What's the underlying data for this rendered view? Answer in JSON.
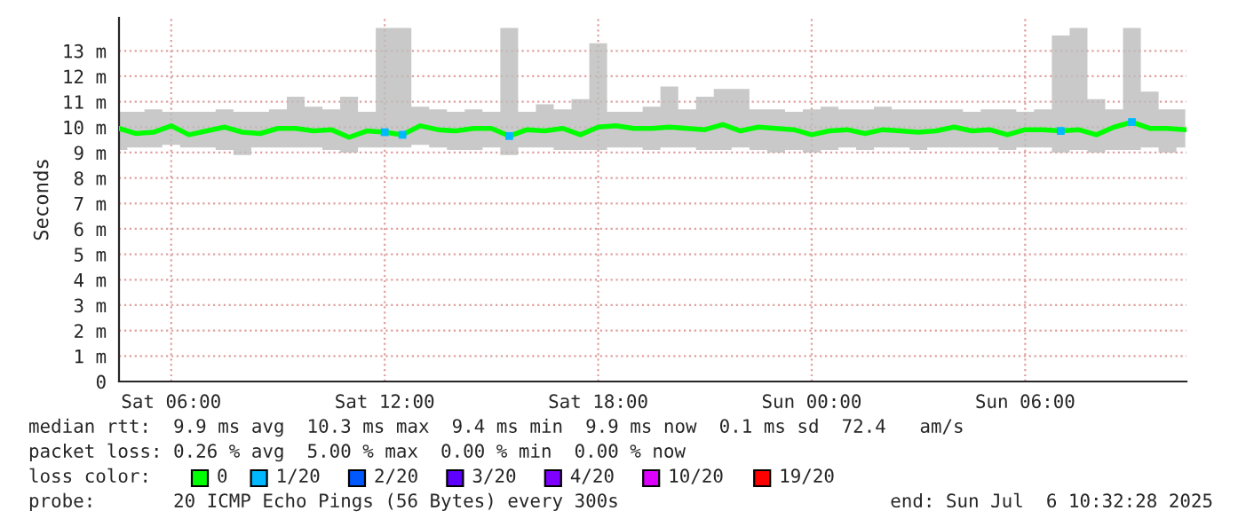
{
  "chart_data": {
    "type": "line",
    "ylabel": "Seconds",
    "x": [
      "2025-07-05T04:32",
      "2025-07-05T05:00",
      "2025-07-05T05:30",
      "2025-07-05T06:00",
      "2025-07-05T06:30",
      "2025-07-05T07:00",
      "2025-07-05T07:30",
      "2025-07-05T08:00",
      "2025-07-05T08:30",
      "2025-07-05T09:00",
      "2025-07-05T09:30",
      "2025-07-05T10:00",
      "2025-07-05T10:30",
      "2025-07-05T11:00",
      "2025-07-05T11:30",
      "2025-07-05T12:00",
      "2025-07-05T12:30",
      "2025-07-05T13:00",
      "2025-07-05T13:30",
      "2025-07-05T14:00",
      "2025-07-05T14:30",
      "2025-07-05T15:00",
      "2025-07-05T15:30",
      "2025-07-05T16:00",
      "2025-07-05T16:30",
      "2025-07-05T17:00",
      "2025-07-05T17:30",
      "2025-07-05T18:00",
      "2025-07-05T18:30",
      "2025-07-05T19:00",
      "2025-07-05T19:30",
      "2025-07-05T20:00",
      "2025-07-05T20:30",
      "2025-07-05T21:00",
      "2025-07-05T21:30",
      "2025-07-05T22:00",
      "2025-07-05T22:30",
      "2025-07-05T23:00",
      "2025-07-05T23:30",
      "2025-07-06T00:00",
      "2025-07-06T00:30",
      "2025-07-06T01:00",
      "2025-07-06T01:30",
      "2025-07-06T02:00",
      "2025-07-06T02:30",
      "2025-07-06T03:00",
      "2025-07-06T03:30",
      "2025-07-06T04:00",
      "2025-07-06T04:30",
      "2025-07-06T05:00",
      "2025-07-06T05:30",
      "2025-07-06T06:00",
      "2025-07-06T06:30",
      "2025-07-06T07:00",
      "2025-07-06T07:30",
      "2025-07-06T08:00",
      "2025-07-06T08:30",
      "2025-07-06T09:00",
      "2025-07-06T09:30",
      "2025-07-06T10:00",
      "2025-07-06T10:30"
    ],
    "series": [
      {
        "name": "0",
        "color": "#00ff00",
        "values": [
          9.95,
          9.75,
          9.8,
          10.05,
          9.7,
          9.85,
          10.0,
          9.8,
          9.75,
          9.95,
          9.95,
          9.85,
          9.9,
          9.6,
          9.85,
          9.8,
          9.7,
          10.05,
          9.9,
          9.85,
          9.95,
          9.95,
          9.65,
          9.9,
          9.85,
          9.95,
          9.7,
          10.0,
          10.05,
          9.95,
          9.95,
          10.0,
          9.95,
          9.9,
          10.1,
          9.85,
          10.0,
          9.95,
          9.9,
          9.7,
          9.85,
          9.9,
          9.75,
          9.9,
          9.85,
          9.8,
          9.85,
          10.0,
          9.85,
          9.9,
          9.7,
          9.9,
          9.9,
          9.85,
          9.9,
          9.7,
          10.0,
          10.2,
          9.95,
          9.95,
          9.9
        ],
        "lower": [
          9.1,
          9.2,
          9.2,
          9.3,
          9.2,
          9.2,
          9.1,
          8.9,
          9.2,
          9.2,
          9.2,
          9.2,
          9.1,
          9.0,
          9.2,
          9.2,
          9.2,
          9.3,
          9.2,
          9.1,
          9.1,
          9.2,
          8.9,
          9.2,
          9.2,
          9.1,
          9.1,
          9.1,
          9.2,
          9.2,
          9.1,
          9.2,
          9.2,
          9.1,
          9.1,
          9.2,
          9.1,
          9.0,
          9.1,
          9.0,
          9.1,
          9.2,
          9.1,
          9.2,
          9.2,
          9.1,
          9.2,
          9.2,
          9.2,
          9.2,
          9.1,
          9.2,
          9.2,
          9.0,
          9.1,
          9.0,
          9.1,
          9.1,
          9.2,
          9.0,
          9.2
        ],
        "upper": [
          10.6,
          10.6,
          10.7,
          10.6,
          10.6,
          10.6,
          10.7,
          10.6,
          10.6,
          10.7,
          11.2,
          10.8,
          10.7,
          11.2,
          10.6,
          13.9,
          13.9,
          10.8,
          10.7,
          10.6,
          10.7,
          10.6,
          13.9,
          10.6,
          10.9,
          10.7,
          11.1,
          13.3,
          10.6,
          10.6,
          10.8,
          11.6,
          10.7,
          11.2,
          11.5,
          11.5,
          10.7,
          10.7,
          10.6,
          10.7,
          10.8,
          10.7,
          10.7,
          10.8,
          10.7,
          10.7,
          10.7,
          10.7,
          10.6,
          10.7,
          10.7,
          10.6,
          10.7,
          13.6,
          13.9,
          11.1,
          10.7,
          13.9,
          11.4,
          10.7,
          10.7
        ]
      },
      {
        "name": "1/20",
        "color": "#00b8ff",
        "type": "scatter",
        "marker": "square",
        "values": [
          null,
          null,
          null,
          null,
          null,
          null,
          null,
          null,
          null,
          null,
          null,
          null,
          null,
          null,
          null,
          9.8,
          9.7,
          null,
          null,
          null,
          null,
          null,
          9.65,
          null,
          null,
          null,
          null,
          null,
          null,
          null,
          null,
          null,
          null,
          null,
          null,
          null,
          null,
          null,
          null,
          null,
          null,
          null,
          null,
          null,
          null,
          null,
          null,
          null,
          null,
          null,
          null,
          null,
          null,
          9.85,
          null,
          null,
          null,
          10.2,
          null,
          null,
          null
        ]
      },
      {
        "name": "2/20",
        "color": "#0059ff",
        "type": "scatter",
        "marker": "square",
        "values": [
          null,
          null,
          null,
          null,
          null,
          null,
          null,
          null,
          null,
          null,
          null,
          null,
          null,
          null,
          null,
          null,
          null,
          null,
          null,
          null,
          null,
          null,
          null,
          null,
          null,
          null,
          null,
          null,
          null,
          null,
          null,
          null,
          null,
          null,
          null,
          null,
          null,
          null,
          null,
          null,
          null,
          null,
          null,
          null,
          null,
          null,
          null,
          null,
          null,
          null,
          null,
          null,
          null,
          null,
          null,
          null,
          null,
          null,
          null,
          null,
          null
        ]
      },
      {
        "name": "3/20",
        "color": "#5e00ff",
        "type": "scatter",
        "marker": "square",
        "values": [
          null,
          null,
          null,
          null,
          null,
          null,
          null,
          null,
          null,
          null,
          null,
          null,
          null,
          null,
          null,
          null,
          null,
          null,
          null,
          null,
          null,
          null,
          null,
          null,
          null,
          null,
          null,
          null,
          null,
          null,
          null,
          null,
          null,
          null,
          null,
          null,
          null,
          null,
          null,
          null,
          null,
          null,
          null,
          null,
          null,
          null,
          null,
          null,
          null,
          null,
          null,
          null,
          null,
          null,
          null,
          null,
          null,
          null,
          null,
          null,
          null
        ]
      },
      {
        "name": "4/20",
        "color": "#7e00ff",
        "type": "scatter",
        "marker": "square",
        "values": [
          null,
          null,
          null,
          null,
          null,
          null,
          null,
          null,
          null,
          null,
          null,
          null,
          null,
          null,
          null,
          null,
          null,
          null,
          null,
          null,
          null,
          null,
          null,
          null,
          null,
          null,
          null,
          null,
          null,
          null,
          null,
          null,
          null,
          null,
          null,
          null,
          null,
          null,
          null,
          null,
          null,
          null,
          null,
          null,
          null,
          null,
          null,
          null,
          null,
          null,
          null,
          null,
          null,
          null,
          null,
          null,
          null,
          null,
          null,
          null,
          null
        ]
      },
      {
        "name": "10/20",
        "color": "#dd00ff",
        "type": "scatter",
        "marker": "square",
        "values": [
          null,
          null,
          null,
          null,
          null,
          null,
          null,
          null,
          null,
          null,
          null,
          null,
          null,
          null,
          null,
          null,
          null,
          null,
          null,
          null,
          null,
          null,
          null,
          null,
          null,
          null,
          null,
          null,
          null,
          null,
          null,
          null,
          null,
          null,
          null,
          null,
          null,
          null,
          null,
          null,
          null,
          null,
          null,
          null,
          null,
          null,
          null,
          null,
          null,
          null,
          null,
          null,
          null,
          null,
          null,
          null,
          null,
          null,
          null,
          null,
          null
        ]
      },
      {
        "name": "19/20",
        "color": "#ff0000",
        "type": "scatter",
        "marker": "square",
        "values": [
          null,
          null,
          null,
          null,
          null,
          null,
          null,
          null,
          null,
          null,
          null,
          null,
          null,
          null,
          null,
          null,
          null,
          null,
          null,
          null,
          null,
          null,
          null,
          null,
          null,
          null,
          null,
          null,
          null,
          null,
          null,
          null,
          null,
          null,
          null,
          null,
          null,
          null,
          null,
          null,
          null,
          null,
          null,
          null,
          null,
          null,
          null,
          null,
          null,
          null,
          null,
          null,
          null,
          null,
          null,
          null,
          null,
          null,
          null,
          null,
          null
        ]
      }
    ],
    "xlim": [
      "2025-07-05T04:32",
      "2025-07-06T10:32"
    ],
    "xticks": [
      {
        "value": "2025-07-05T06:00",
        "label": "Sat 06:00"
      },
      {
        "value": "2025-07-05T12:00",
        "label": "Sat 12:00"
      },
      {
        "value": "2025-07-05T18:00",
        "label": "Sat 18:00"
      },
      {
        "value": "2025-07-06T00:00",
        "label": "Sun 00:00"
      },
      {
        "value": "2025-07-06T06:00",
        "label": "Sun 06:00"
      }
    ],
    "ylim": [
      0,
      14.3
    ],
    "yticks": [
      0,
      {
        "value": 1,
        "label": "1 m"
      },
      {
        "value": 2,
        "label": "2 m"
      },
      {
        "value": 3,
        "label": "3 m"
      },
      {
        "value": 4,
        "label": "4 m"
      },
      {
        "value": 5,
        "label": "5 m"
      },
      {
        "value": 6,
        "label": "6 m"
      },
      {
        "value": 7,
        "label": "7 m"
      },
      {
        "value": 8,
        "label": "8 m"
      },
      {
        "value": 9,
        "label": "9 m"
      },
      {
        "value": 10,
        "label": "10 m"
      },
      {
        "value": 11,
        "label": "11 m"
      },
      {
        "value": 12,
        "label": "12 m"
      },
      {
        "value": 13,
        "label": "13 m"
      }
    ],
    "grid": true,
    "legend": "bottom",
    "legend_title": "loss color:",
    "annotations": [
      "median rtt:  9.9 ms avg  10.3 ms max  9.4 ms min  9.9 ms now  0.1 ms sd  72.4   am/s",
      "packet loss: 0.26 % avg  5.00 % max  0.00 % min  0.00 % now",
      "probe:       20 ICMP Echo Pings (56 Bytes) every 300s",
      "end: Sun Jul  6 10:32:28 2025"
    ]
  }
}
